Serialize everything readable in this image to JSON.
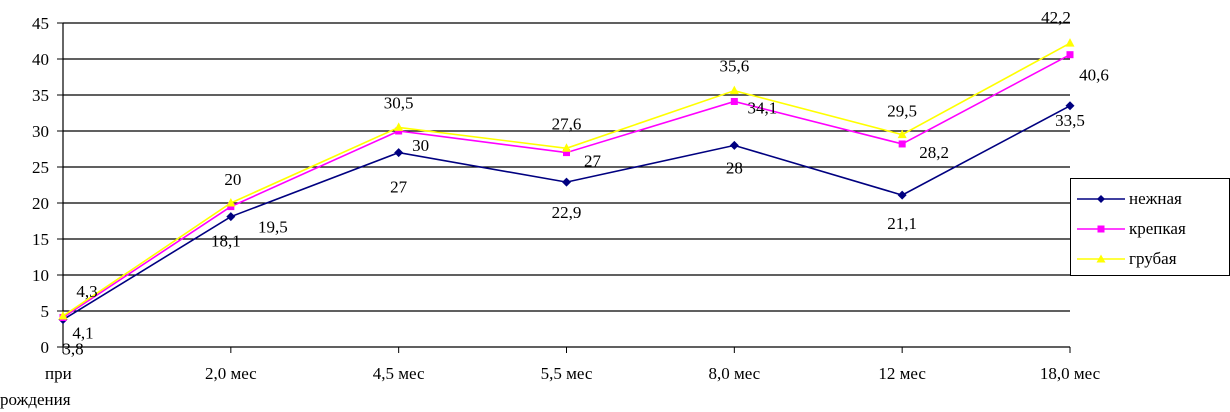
{
  "chart_data": {
    "type": "line",
    "title": "",
    "xlabel": "",
    "ylabel": "",
    "ylim": [
      0,
      45
    ],
    "yticks": [
      "0",
      "5",
      "10",
      "15",
      "20",
      "25",
      "30",
      "35",
      "40",
      "45"
    ],
    "categories": [
      [
        "при",
        "рождения"
      ],
      [
        "2,0 мес"
      ],
      [
        "4,5 мес"
      ],
      [
        "5,5 мес"
      ],
      [
        "8,0 мес"
      ],
      [
        "12 мес"
      ],
      [
        "18,0  мес"
      ]
    ],
    "grid": true,
    "legend_position": "right",
    "series": [
      {
        "name": "нежная",
        "color": "#000080",
        "marker": "diamond",
        "values": [
          3.8,
          18.1,
          27,
          22.9,
          28,
          21.1,
          33.5
        ],
        "labels": [
          "3,8",
          "18,1",
          "27",
          "22,9",
          "28",
          "21,1",
          "33,5"
        ]
      },
      {
        "name": "крепкая",
        "color": "#ff00ff",
        "marker": "square",
        "values": [
          4.1,
          19.5,
          30,
          27,
          34.1,
          28.2,
          40.6
        ],
        "labels": [
          "4,1",
          "19,5",
          "30",
          "27",
          "34,1",
          "28,2",
          "40,6"
        ]
      },
      {
        "name": "грубая",
        "color": "#ffff00",
        "marker": "triangle",
        "values": [
          4.3,
          20,
          30.5,
          27.6,
          35.6,
          29.5,
          42.2
        ],
        "labels": [
          "4,3",
          "20",
          "30,5",
          "27,6",
          "35,6",
          "29,5",
          "42,2"
        ]
      }
    ]
  }
}
